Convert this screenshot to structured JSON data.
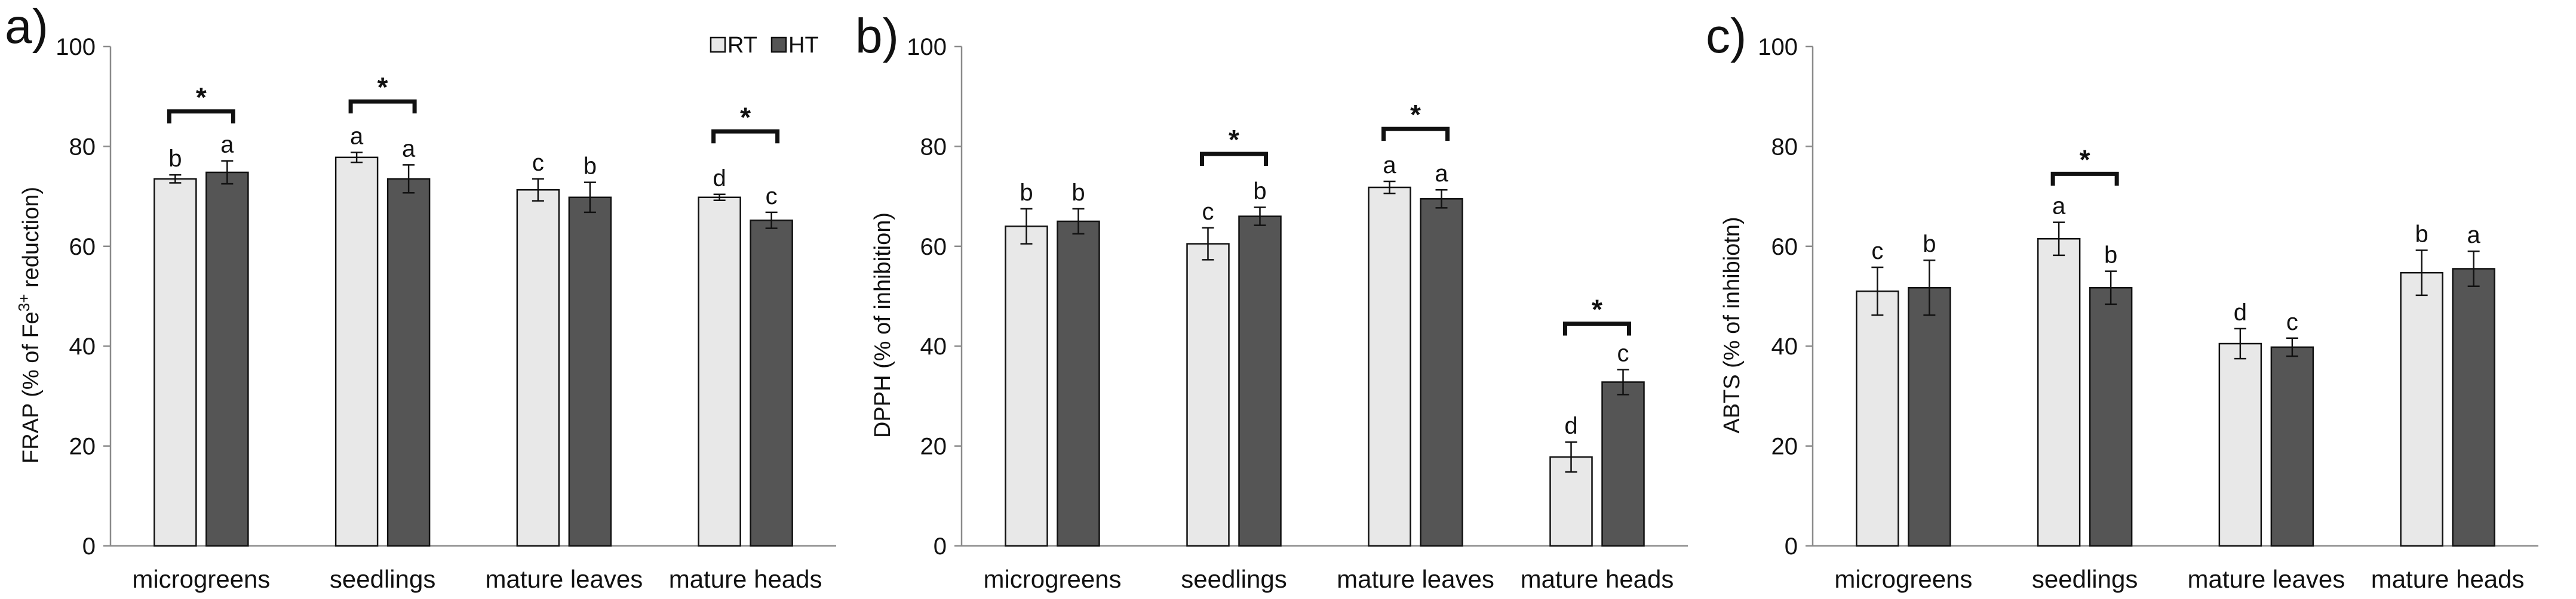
{
  "chart_data": [
    {
      "type": "bar",
      "panel_label": "a)",
      "ylabel_main": "FRAP (% of Fe",
      "ylabel_sup": "3+",
      "ylabel_tail": " reduction)",
      "xlabel": "",
      "ylim": [
        0,
        100
      ],
      "yticks": [
        "0",
        "20",
        "40",
        "60",
        "80",
        "100"
      ],
      "categories": [
        "microgreens",
        "seedlings",
        "mature leaves",
        "mature heads"
      ],
      "series": [
        {
          "name": "RT",
          "color": "#e8e8e8",
          "values": [
            73.5,
            77.8,
            71.3,
            69.8
          ],
          "errors": [
            0.8,
            1.0,
            2.2,
            0.6
          ],
          "letters": [
            "b",
            "a",
            "c",
            "d"
          ]
        },
        {
          "name": "HT",
          "color": "#555555",
          "values": [
            74.8,
            73.5,
            69.8,
            65.2
          ],
          "errors": [
            2.3,
            2.8,
            3.0,
            1.6
          ],
          "letters": [
            "a",
            "a",
            "b",
            "c"
          ]
        }
      ],
      "significance": [
        {
          "category_index": 0,
          "mark": "*",
          "bracket_at": 87
        },
        {
          "category_index": 1,
          "mark": "*",
          "bracket_at": 89
        },
        {
          "category_index": 3,
          "mark": "*",
          "bracket_at": 83
        }
      ],
      "legend": {
        "placement": "top-right",
        "items": [
          "RT",
          "HT"
        ]
      }
    },
    {
      "type": "bar",
      "panel_label": "b)",
      "ylabel_main": "DPPH (% of inhibition)",
      "ylabel_sup": "",
      "ylabel_tail": "",
      "xlabel": "",
      "ylim": [
        0,
        100
      ],
      "yticks": [
        "0",
        "20",
        "40",
        "60",
        "80",
        "100"
      ],
      "categories": [
        "microgreens",
        "seedlings",
        "mature leaves",
        "mature heads"
      ],
      "series": [
        {
          "name": "RT",
          "color": "#e8e8e8",
          "values": [
            64.0,
            60.5,
            71.8,
            17.8
          ],
          "errors": [
            3.5,
            3.2,
            1.2,
            3.0
          ],
          "letters": [
            "b",
            "c",
            "a",
            "d"
          ]
        },
        {
          "name": "HT",
          "color": "#555555",
          "values": [
            65.0,
            66.0,
            69.5,
            32.8
          ],
          "errors": [
            2.5,
            1.8,
            1.8,
            2.5
          ],
          "letters": [
            "b",
            "b",
            "a",
            "c"
          ]
        }
      ],
      "significance": [
        {
          "category_index": 1,
          "mark": "*",
          "bracket_at": 78.5
        },
        {
          "category_index": 2,
          "mark": "*",
          "bracket_at": 83.5
        },
        {
          "category_index": 3,
          "mark": "*",
          "bracket_at": 44.5
        }
      ]
    },
    {
      "type": "bar",
      "panel_label": "c)",
      "ylabel_main": "ABTS (% of inhibiotn)",
      "ylabel_sup": "",
      "ylabel_tail": "",
      "xlabel": "",
      "ylim": [
        0,
        100
      ],
      "yticks": [
        "0",
        "20",
        "40",
        "60",
        "80",
        "100"
      ],
      "categories": [
        "microgreens",
        "seedlings",
        "mature leaves",
        "mature heads"
      ],
      "series": [
        {
          "name": "RT",
          "color": "#e8e8e8",
          "values": [
            51.0,
            61.5,
            40.5,
            54.7
          ],
          "errors": [
            4.8,
            3.3,
            3.0,
            4.5
          ],
          "letters": [
            "c",
            "a",
            "d",
            "b"
          ]
        },
        {
          "name": "HT",
          "color": "#555555",
          "values": [
            51.7,
            51.7,
            39.8,
            55.5
          ],
          "errors": [
            5.5,
            3.3,
            1.8,
            3.5
          ],
          "letters": [
            "b",
            "b",
            "c",
            "a"
          ]
        }
      ],
      "significance": [
        {
          "category_index": 1,
          "mark": "*",
          "bracket_at": 74.5
        }
      ]
    }
  ]
}
